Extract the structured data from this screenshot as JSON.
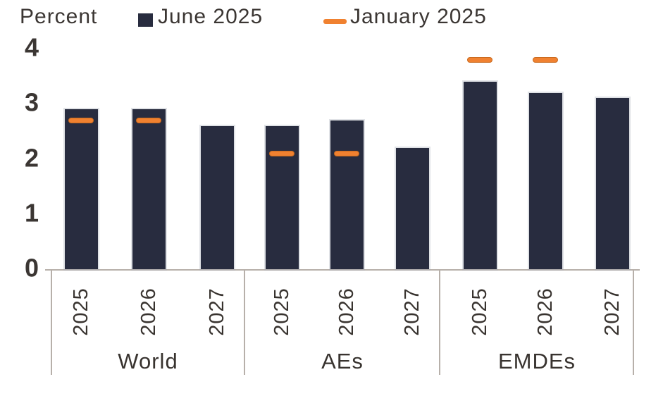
{
  "header": {
    "axis_unit_label": "Percent",
    "legend": [
      {
        "label": "June 2025",
        "marker": "square-icon",
        "color": "#282c3f"
      },
      {
        "label": "January 2025",
        "marker": "dash-icon",
        "color": "#f08130"
      }
    ]
  },
  "chart_data": {
    "type": "bar",
    "title": "",
    "ylabel": "Percent",
    "xlabel": "",
    "ylim": [
      0,
      4
    ],
    "yticks": [
      0,
      1,
      2,
      3,
      4
    ],
    "grid": false,
    "legend_position": "top",
    "groups": [
      "World",
      "AEs",
      "EMDEs"
    ],
    "categories": [
      "2025",
      "2026",
      "2027"
    ],
    "series": [
      {
        "name": "June 2025",
        "style": "bar",
        "color": "#282c3f",
        "values": {
          "World": [
            2.9,
            2.9,
            2.6
          ],
          "AEs": [
            2.6,
            2.7,
            2.2
          ],
          "EMDEs": [
            3.4,
            3.2,
            3.1
          ]
        }
      },
      {
        "name": "January 2025",
        "style": "dash",
        "color": "#f08130",
        "values": {
          "World": [
            2.7,
            2.7,
            null
          ],
          "AEs": [
            2.1,
            2.1,
            null
          ],
          "EMDEs": [
            3.8,
            3.8,
            null
          ]
        }
      }
    ]
  }
}
